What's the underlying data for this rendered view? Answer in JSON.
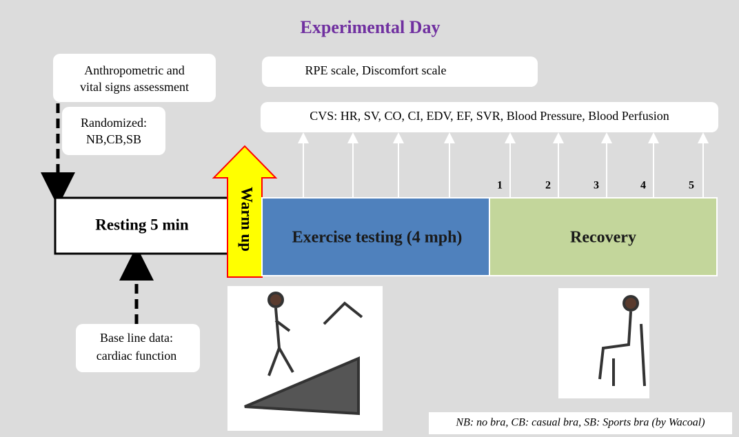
{
  "title": "Experimental Day",
  "boxes": {
    "anthropometric": [
      "Anthropometric and",
      "vital signs assessment"
    ],
    "randomized": [
      "Randomized:",
      "NB,CB,SB"
    ],
    "scales": "RPE scale, Discomfort scale",
    "cvs": "CVS: HR, SV, CO, CI, EDV, EF, SVR, Blood Pressure, Blood Perfusion",
    "baseline": [
      "Base line data:",
      "cardiac function"
    ]
  },
  "phases": {
    "resting": "Resting 5 min",
    "warmup": "Warm up",
    "exercise": "Exercise testing (4 mph)",
    "recovery": "Recovery"
  },
  "recovery_points": [
    "1",
    "2",
    "3",
    "4",
    "5"
  ],
  "footnote": "NB: no bra, CB: casual bra, SB: Sports bra (by Wacoal)"
}
